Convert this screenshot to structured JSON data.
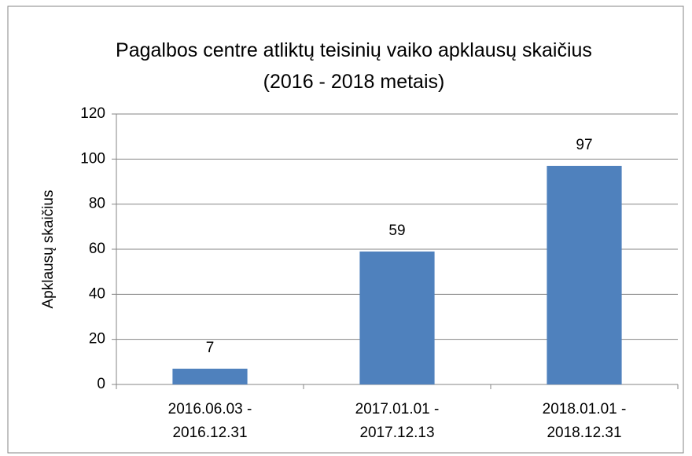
{
  "chart_data": {
    "type": "bar",
    "title": "Pagalbos centre atliktų teisinių vaiko apklausų skaičius (2016 - 2018 metais)",
    "ylabel": "Apklausų skaičius",
    "categories": [
      "2016.06.03 - 2016.12.31",
      "2017.01.01 - 2017.12.13",
      "2018.01.01 - 2018.12.31"
    ],
    "values": [
      7,
      59,
      97
    ],
    "color": "#4f81bd",
    "ylim": [
      0,
      120
    ],
    "yticks": [
      0,
      20,
      40,
      60,
      80,
      100,
      120
    ],
    "grid": true
  }
}
